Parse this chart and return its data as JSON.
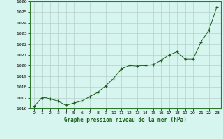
{
  "x": [
    0,
    0.5,
    1,
    1.5,
    2,
    2.5,
    3,
    3.5,
    4,
    4.5,
    5,
    5.5,
    6,
    6.5,
    7,
    7.5,
    8,
    8.5,
    9,
    9.5,
    10,
    10.5,
    11,
    11.5,
    12,
    12.5,
    13,
    13.5,
    14,
    14.5,
    15,
    15.5,
    16,
    16.5,
    17,
    17.5,
    18,
    18.5,
    19,
    19.5,
    20,
    20.5,
    21,
    21.5,
    22,
    22.5,
    23
  ],
  "y": [
    1016.2,
    1016.6,
    1017.0,
    1017.0,
    1016.9,
    1016.8,
    1016.7,
    1016.5,
    1016.3,
    1016.4,
    1016.5,
    1016.6,
    1016.7,
    1016.9,
    1017.1,
    1017.3,
    1017.5,
    1017.8,
    1018.1,
    1018.45,
    1018.8,
    1019.25,
    1019.7,
    1019.85,
    1020.0,
    1019.98,
    1019.95,
    1020.0,
    1020.0,
    1020.05,
    1020.1,
    1020.3,
    1020.5,
    1020.75,
    1021.0,
    1021.15,
    1021.3,
    1020.95,
    1020.6,
    1020.6,
    1020.6,
    1021.4,
    1022.2,
    1022.75,
    1023.3,
    1024.4,
    1025.5
  ],
  "markers_x": [
    0,
    1,
    2,
    3,
    4,
    5,
    6,
    7,
    8,
    9,
    10,
    11,
    12,
    13,
    14,
    15,
    16,
    17,
    18,
    19,
    20,
    21,
    22,
    23
  ],
  "markers_y": [
    1016.2,
    1017.0,
    1016.9,
    1016.7,
    1016.3,
    1016.5,
    1016.7,
    1017.1,
    1017.5,
    1018.1,
    1018.8,
    1019.7,
    1020.0,
    1019.95,
    1020.0,
    1020.1,
    1020.5,
    1021.0,
    1021.3,
    1020.6,
    1020.6,
    1022.2,
    1023.3,
    1025.5
  ],
  "line_color": "#1a5c1a",
  "marker_color": "#1a5c1a",
  "bg_color": "#d5f5ee",
  "grid_color": "#b8d0cc",
  "xlabel": "Graphe pression niveau de la mer (hPa)",
  "xlim": [
    -0.5,
    23.5
  ],
  "ylim": [
    1016,
    1026
  ],
  "yticks": [
    1016,
    1017,
    1018,
    1019,
    1020,
    1021,
    1022,
    1023,
    1024,
    1025,
    1026
  ],
  "xticks": [
    0,
    1,
    2,
    3,
    4,
    5,
    6,
    7,
    8,
    9,
    10,
    11,
    12,
    13,
    14,
    15,
    16,
    17,
    18,
    19,
    20,
    21,
    22,
    23
  ]
}
